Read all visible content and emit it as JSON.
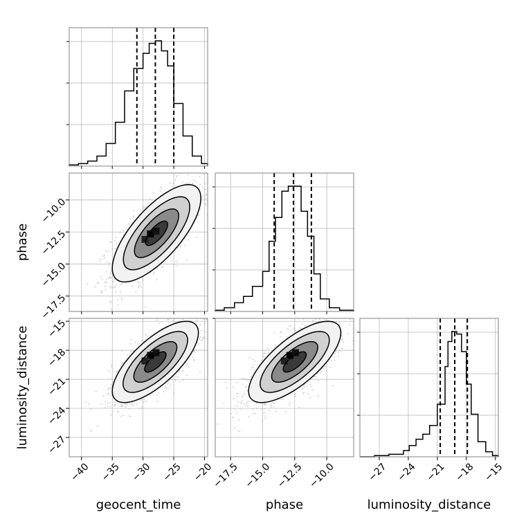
{
  "chart_data": {
    "type": "corner",
    "parameters": [
      "geocent_time",
      "phase",
      "luminosity_distance"
    ],
    "grid": true,
    "colors": {
      "hist": "#000000",
      "quantile": "#000000",
      "points": "#b3b3b3",
      "grid": "#b0b0b0"
    },
    "axes": {
      "geocent_time": {
        "lim": [
          -42,
          -19.5
        ],
        "ticks": [
          -40,
          -35,
          -30,
          -25,
          -20
        ],
        "tick_labels": [
          "−40",
          "−35",
          "−30",
          "−25",
          "−20"
        ]
      },
      "phase": {
        "lim": [
          -18.7,
          -7.9
        ],
        "ticks": [
          -17.5,
          -15.0,
          -12.5,
          -10.0
        ],
        "tick_labels": [
          "−17.5",
          "−15.0",
          "−12.5",
          "−10.0"
        ]
      },
      "luminosity_distance": {
        "lim": [
          -29,
          -14.7
        ],
        "ticks": [
          -27,
          -24,
          -21,
          -18,
          -15
        ],
        "tick_labels": [
          "−27",
          "−24",
          "−21",
          "−18",
          "−15"
        ]
      }
    },
    "histograms": [
      {
        "param": "geocent_time",
        "bin_edges": [
          -42,
          -40.5,
          -39,
          -37.5,
          -36,
          -34.5,
          -33,
          -31.5,
          -30,
          -29,
          -28,
          -27,
          -26,
          -25,
          -23.5,
          -22,
          -20.5,
          -19.5
        ],
        "counts": [
          1,
          2,
          4,
          8,
          18,
          35,
          60,
          78,
          90,
          98,
          100,
          92,
          80,
          50,
          24,
          8,
          2
        ],
        "quantiles": [
          -31,
          -28,
          -25
        ]
      },
      {
        "param": "phase",
        "bin_edges": [
          -18.7,
          -18,
          -17.2,
          -16.5,
          -15.8,
          -15.0,
          -14.5,
          -14.0,
          -13.5,
          -13.0,
          -12.5,
          -12.0,
          -11.5,
          -11.0,
          -10.5,
          -9.8,
          -9.0,
          -7.9
        ],
        "counts": [
          1,
          3,
          7,
          12,
          20,
          32,
          56,
          75,
          96,
          100,
          100,
          80,
          60,
          30,
          10,
          3,
          1
        ],
        "quantiles": [
          -14.1,
          -12.6,
          -11.2
        ]
      },
      {
        "param": "luminosity_distance",
        "bin_edges": [
          -29,
          -27.5,
          -26,
          -24.5,
          -23.9,
          -23.2,
          -22.5,
          -21.8,
          -21.0,
          -20.2,
          -19.9,
          -19.5,
          -19.0,
          -18.5,
          -18.0,
          -17.5,
          -16.8,
          -16.0,
          -15.3,
          -14.7
        ],
        "counts": [
          0,
          1,
          2,
          5,
          9,
          14,
          18,
          25,
          42,
          72,
          92,
          100,
          98,
          84,
          58,
          34,
          12,
          4,
          1
        ],
        "quantiles": [
          -20.7,
          -19.2,
          -17.9
        ]
      }
    ],
    "scatter_2d": [
      {
        "x": "geocent_time",
        "y": "phase",
        "mean": [
          -27.8,
          -12.6
        ],
        "std": [
          3.6,
          1.9
        ],
        "rho": 0.72,
        "peak": [
          -28,
          -12.7
        ]
      },
      {
        "x": "geocent_time",
        "y": "luminosity_distance",
        "mean": [
          -28,
          -19.2
        ],
        "std": [
          3.5,
          2.1
        ],
        "rho": 0.72,
        "peak": [
          -28,
          -18.6
        ]
      },
      {
        "x": "phase",
        "y": "luminosity_distance",
        "mean": [
          -12.5,
          -19.2
        ],
        "std": [
          1.8,
          2.1
        ],
        "rho": 0.72,
        "peak": [
          -12.5,
          -18.6
        ]
      }
    ],
    "contour_levels_sigma": [
      0.5,
      1.0,
      1.5,
      2.0
    ]
  }
}
